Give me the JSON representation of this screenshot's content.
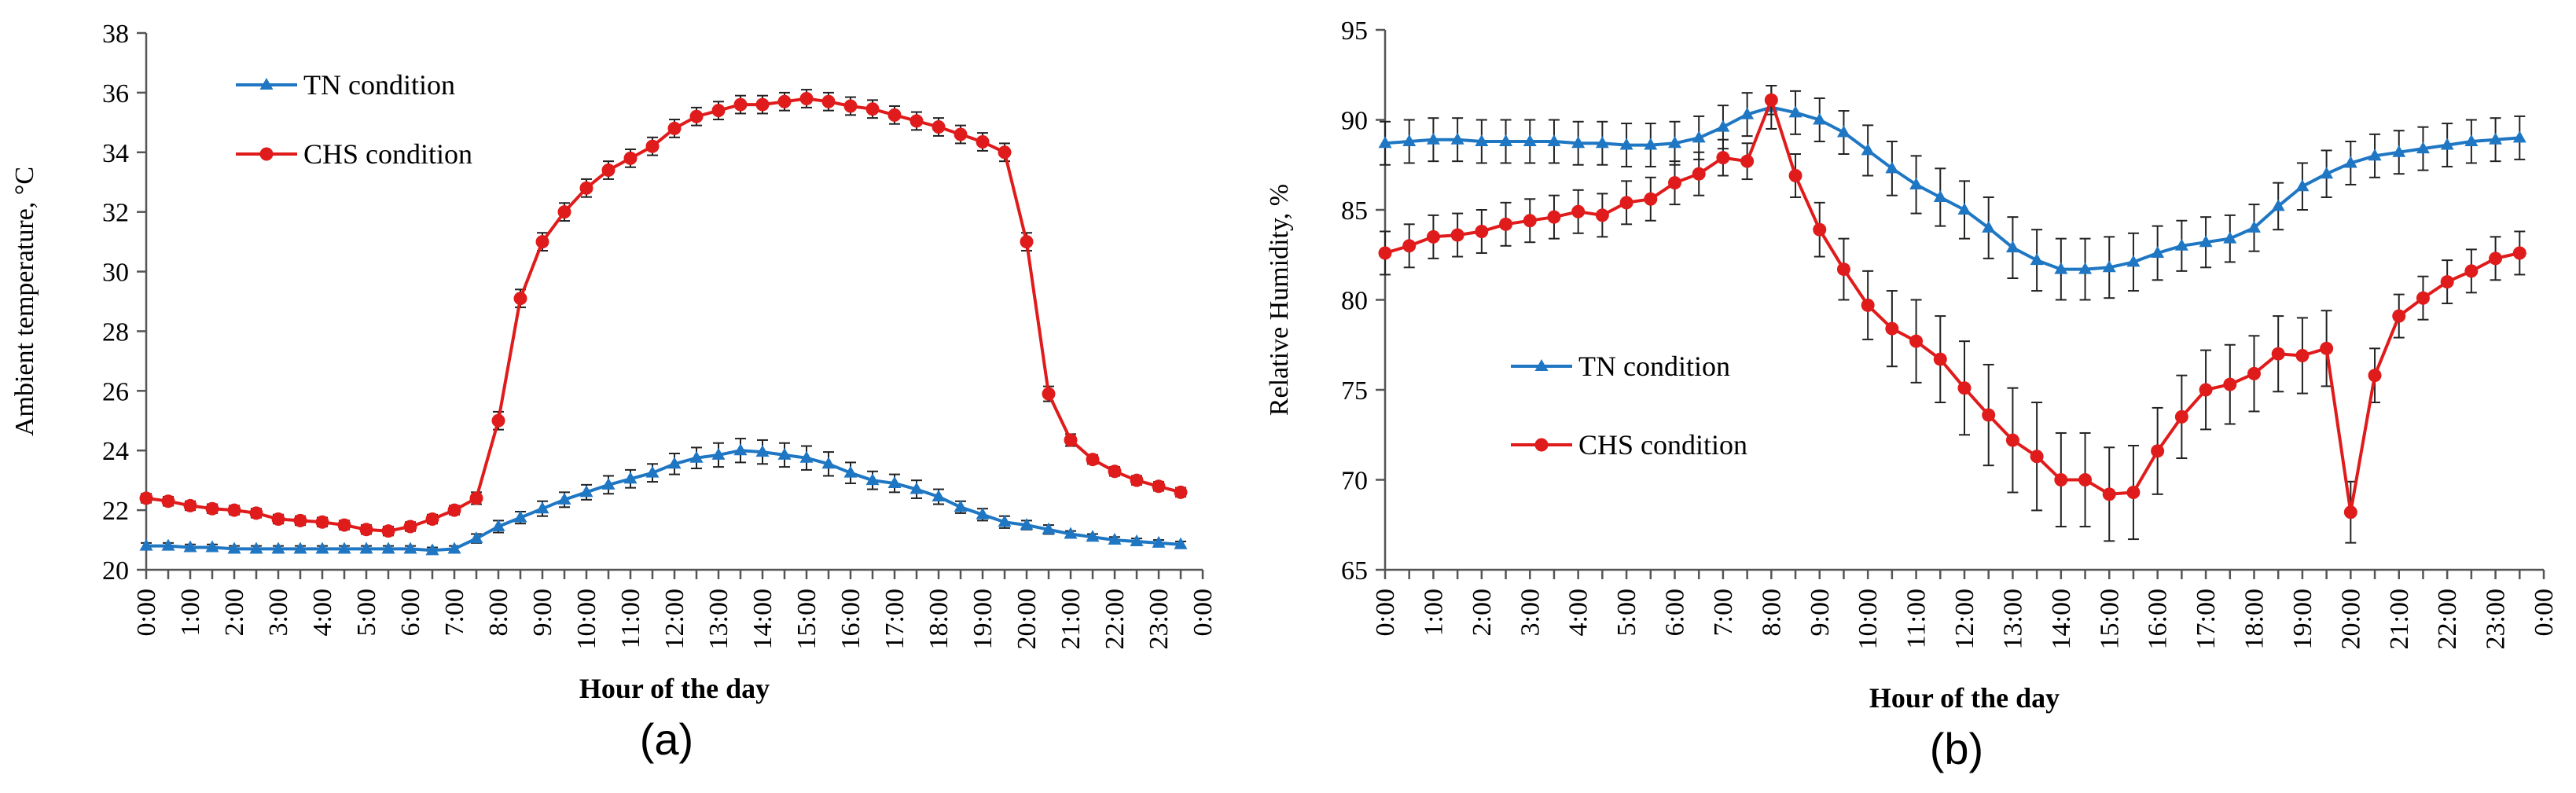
{
  "colors": {
    "tn": "#1f77c4",
    "chs": "#e01b1b",
    "axis": "#555555",
    "err": "#222222"
  },
  "chart_data": [
    {
      "panel": "(a)",
      "type": "line",
      "title": "",
      "xlabel": "Hour of the day",
      "ylabel": "Ambient temperature, °C",
      "ylim": [
        20,
        38
      ],
      "yticks": [
        "20",
        "22",
        "24",
        "26",
        "28",
        "30",
        "32",
        "34",
        "36",
        "38"
      ],
      "xticks": [
        "0:00",
        "1:00",
        "2:00",
        "3:00",
        "4:00",
        "5:00",
        "6:00",
        "7:00",
        "8:00",
        "9:00",
        "10:00",
        "11:00",
        "12:00",
        "13:00",
        "14:00",
        "15:00",
        "16:00",
        "17:00",
        "18:00",
        "19:00",
        "20:00",
        "21:00",
        "22:00",
        "23:00",
        "0:00"
      ],
      "x": [
        0,
        0.5,
        1,
        1.5,
        2,
        2.5,
        3,
        3.5,
        4,
        4.5,
        5,
        5.5,
        6,
        6.5,
        7,
        7.5,
        8,
        8.5,
        9,
        9.5,
        10,
        10.5,
        11,
        11.5,
        12,
        12.5,
        13,
        13.5,
        14,
        14.5,
        15,
        15.5,
        16,
        16.5,
        17,
        17.5,
        18,
        18.5,
        19,
        19.5,
        20,
        20.5,
        21,
        21.5,
        22,
        22.5,
        23,
        23.5
      ],
      "legend": "top-left",
      "series": [
        {
          "name": "TN condition",
          "marker": "triangle",
          "values": [
            20.8,
            20.8,
            20.75,
            20.75,
            20.7,
            20.7,
            20.7,
            20.7,
            20.7,
            20.7,
            20.7,
            20.7,
            20.7,
            20.65,
            20.7,
            21.05,
            21.45,
            21.75,
            22.05,
            22.35,
            22.6,
            22.85,
            23.05,
            23.25,
            23.55,
            23.75,
            23.85,
            24.0,
            23.95,
            23.85,
            23.75,
            23.55,
            23.25,
            23.0,
            22.9,
            22.7,
            22.45,
            22.1,
            21.85,
            21.6,
            21.5,
            21.35,
            21.2,
            21.1,
            21.0,
            20.95,
            20.9,
            20.85
          ],
          "errors": [
            0.1,
            0.1,
            0.1,
            0.1,
            0.1,
            0.1,
            0.1,
            0.1,
            0.1,
            0.1,
            0.1,
            0.1,
            0.1,
            0.1,
            0.1,
            0.15,
            0.2,
            0.2,
            0.25,
            0.25,
            0.25,
            0.3,
            0.3,
            0.3,
            0.35,
            0.35,
            0.4,
            0.4,
            0.4,
            0.4,
            0.4,
            0.4,
            0.35,
            0.3,
            0.3,
            0.3,
            0.25,
            0.2,
            0.2,
            0.2,
            0.15,
            0.15,
            0.1,
            0.1,
            0.1,
            0.1,
            0.1,
            0.1
          ]
        },
        {
          "name": "CHS condition",
          "marker": "circle",
          "values": [
            22.4,
            22.3,
            22.15,
            22.05,
            22.0,
            21.9,
            21.7,
            21.65,
            21.6,
            21.5,
            21.35,
            21.3,
            21.45,
            21.7,
            22.0,
            22.4,
            25.0,
            29.1,
            31.0,
            32.0,
            32.8,
            33.4,
            33.8,
            34.2,
            34.8,
            35.2,
            35.4,
            35.6,
            35.6,
            35.7,
            35.8,
            35.7,
            35.55,
            35.45,
            35.25,
            35.05,
            34.85,
            34.6,
            34.35,
            34.0,
            31.0,
            25.9,
            24.35,
            23.7,
            23.3,
            23.0,
            22.8,
            22.6
          ],
          "errors": [
            0.15,
            0.15,
            0.15,
            0.15,
            0.15,
            0.15,
            0.15,
            0.15,
            0.15,
            0.15,
            0.15,
            0.15,
            0.15,
            0.15,
            0.15,
            0.2,
            0.3,
            0.3,
            0.3,
            0.3,
            0.3,
            0.3,
            0.3,
            0.3,
            0.3,
            0.3,
            0.3,
            0.3,
            0.3,
            0.3,
            0.3,
            0.3,
            0.3,
            0.3,
            0.3,
            0.3,
            0.3,
            0.3,
            0.3,
            0.3,
            0.3,
            0.25,
            0.2,
            0.15,
            0.15,
            0.15,
            0.15,
            0.15
          ]
        }
      ]
    },
    {
      "panel": "(b)",
      "type": "line",
      "title": "",
      "xlabel": "Hour of the day",
      "ylabel": "Relative Humidity, %",
      "ylim": [
        65,
        95
      ],
      "yticks": [
        "65",
        "70",
        "75",
        "80",
        "85",
        "90",
        "95"
      ],
      "xticks": [
        "0:00",
        "1:00",
        "2:00",
        "3:00",
        "4:00",
        "5:00",
        "6:00",
        "7:00",
        "8:00",
        "9:00",
        "10:00",
        "11:00",
        "12:00",
        "13:00",
        "14:00",
        "15:00",
        "16:00",
        "17:00",
        "18:00",
        "19:00",
        "20:00",
        "21:00",
        "22:00",
        "23:00",
        "0:00"
      ],
      "x": [
        0,
        0.5,
        1,
        1.5,
        2,
        2.5,
        3,
        3.5,
        4,
        4.5,
        5,
        5.5,
        6,
        6.5,
        7,
        7.5,
        8,
        8.5,
        9,
        9.5,
        10,
        10.5,
        11,
        11.5,
        12,
        12.5,
        13,
        13.5,
        14,
        14.5,
        15,
        15.5,
        16,
        16.5,
        17,
        17.5,
        18,
        18.5,
        19,
        19.5,
        20,
        20.5,
        21,
        21.5,
        22,
        22.5,
        23,
        23.5
      ],
      "legend": "center-left",
      "series": [
        {
          "name": "TN condition",
          "marker": "triangle",
          "values": [
            88.7,
            88.8,
            88.9,
            88.9,
            88.8,
            88.8,
            88.8,
            88.8,
            88.7,
            88.7,
            88.6,
            88.6,
            88.7,
            89.0,
            89.6,
            90.3,
            90.7,
            90.4,
            90.0,
            89.3,
            88.3,
            87.3,
            86.4,
            85.7,
            85.0,
            84.0,
            82.9,
            82.2,
            81.7,
            81.7,
            81.8,
            82.1,
            82.6,
            83.0,
            83.2,
            83.4,
            84.0,
            85.2,
            86.3,
            87.0,
            87.6,
            88.0,
            88.2,
            88.4,
            88.6,
            88.8,
            88.9,
            89.0
          ],
          "errors": [
            1.2,
            1.2,
            1.2,
            1.2,
            1.2,
            1.2,
            1.2,
            1.2,
            1.2,
            1.2,
            1.2,
            1.2,
            1.2,
            1.2,
            1.2,
            1.2,
            1.2,
            1.2,
            1.2,
            1.2,
            1.4,
            1.5,
            1.6,
            1.6,
            1.6,
            1.7,
            1.7,
            1.7,
            1.7,
            1.7,
            1.7,
            1.6,
            1.5,
            1.4,
            1.4,
            1.3,
            1.3,
            1.3,
            1.3,
            1.3,
            1.2,
            1.2,
            1.2,
            1.2,
            1.2,
            1.2,
            1.2,
            1.2
          ]
        },
        {
          "name": "CHS condition",
          "marker": "circle",
          "values": [
            82.6,
            83.0,
            83.5,
            83.6,
            83.8,
            84.2,
            84.4,
            84.6,
            84.9,
            84.7,
            85.4,
            85.6,
            86.5,
            87.0,
            87.9,
            87.7,
            91.1,
            86.9,
            83.9,
            81.7,
            79.7,
            78.4,
            77.7,
            76.7,
            75.1,
            73.6,
            72.2,
            71.3,
            70.0,
            70.0,
            69.2,
            69.3,
            71.6,
            73.5,
            75.0,
            75.3,
            75.9,
            77.0,
            76.9,
            77.3,
            68.2,
            75.8,
            79.1,
            80.1,
            81.0,
            81.6,
            82.3,
            82.6
          ],
          "errors": [
            1.2,
            1.2,
            1.2,
            1.2,
            1.2,
            1.2,
            1.2,
            1.2,
            1.2,
            1.2,
            1.2,
            1.2,
            1.2,
            1.2,
            1.0,
            1.0,
            0.8,
            1.2,
            1.5,
            1.7,
            1.9,
            2.1,
            2.3,
            2.4,
            2.6,
            2.8,
            2.9,
            3.0,
            2.6,
            2.6,
            2.6,
            2.6,
            2.4,
            2.3,
            2.2,
            2.2,
            2.1,
            2.1,
            2.1,
            2.1,
            1.7,
            1.5,
            1.2,
            1.2,
            1.2,
            1.2,
            1.2,
            1.2
          ]
        }
      ]
    }
  ]
}
